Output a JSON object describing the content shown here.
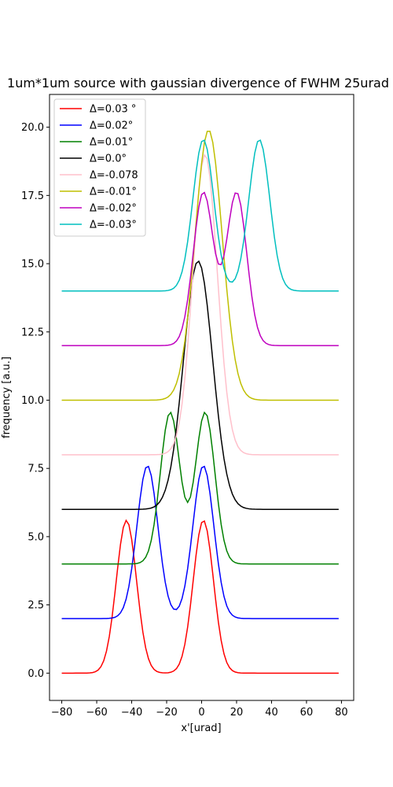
{
  "chart_data": {
    "type": "line",
    "title": "1um*1um source with gaussian divergence of FWHM 25urad",
    "xlabel": "x'[urad]",
    "ylabel": "frequency [a.u.]",
    "xlim": [
      -87,
      87
    ],
    "ylim": [
      -1.0,
      21.2
    ],
    "xticks": [
      -80,
      -60,
      -40,
      -20,
      0,
      20,
      40,
      60,
      80
    ],
    "yticks": [
      0.0,
      2.5,
      5.0,
      7.5,
      10.0,
      12.5,
      15.0,
      17.5,
      20.0
    ],
    "xtick_labels": [
      "−80",
      "−60",
      "−40",
      "−20",
      "0",
      "20",
      "40",
      "60",
      "80"
    ],
    "ytick_labels": [
      "0.0",
      "2.5",
      "5.0",
      "7.5",
      "10.0",
      "12.5",
      "15.0",
      "17.5",
      "20.0"
    ],
    "grid": false,
    "legend": "top-left",
    "series": [
      {
        "name": "Δ=0.03 °",
        "color": "#ff0000",
        "offset": 0,
        "peaks": [
          {
            "center": -43,
            "amp": 5.6,
            "sigma": 5.8
          },
          {
            "center": 1,
            "amp": 5.6,
            "sigma": 5.8
          }
        ]
      },
      {
        "name": "Δ=0.02°",
        "color": "#0000ff",
        "offset": 2,
        "peaks": [
          {
            "center": -31,
            "amp": 5.6,
            "sigma": 6.0
          },
          {
            "center": 1,
            "amp": 5.6,
            "sigma": 6.0
          }
        ]
      },
      {
        "name": "Δ=0.01°",
        "color": "#008000",
        "offset": 4,
        "peaks": [
          {
            "center": -18,
            "amp": 5.55,
            "sigma": 5.6
          },
          {
            "center": 2,
            "amp": 5.55,
            "sigma": 5.6
          }
        ]
      },
      {
        "name": "Δ=0.0°",
        "color": "#000000",
        "offset": 6,
        "peaks": [
          {
            "center": -2,
            "amp": 9.1,
            "sigma": 8.3
          }
        ]
      },
      {
        "name": "Δ=-0.078",
        "color": "#ffc0cb",
        "offset": 8,
        "peaks": [
          {
            "center": 2,
            "amp": 11.0,
            "sigma": 7.0
          }
        ]
      },
      {
        "name": "Δ=-0.01°",
        "color": "#bfbf00",
        "offset": 10,
        "peaks": [
          {
            "center": 4,
            "amp": 9.9,
            "sigma": 7.8
          }
        ]
      },
      {
        "name": "Δ=-0.02°",
        "color": "#bf00bf",
        "offset": 12,
        "peaks": [
          {
            "center": 1,
            "amp": 5.6,
            "sigma": 5.8
          },
          {
            "center": 20,
            "amp": 5.6,
            "sigma": 5.8
          }
        ]
      },
      {
        "name": "Δ=-0.03°",
        "color": "#00bfbf",
        "offset": 14,
        "peaks": [
          {
            "center": 1,
            "amp": 5.55,
            "sigma": 6.0
          },
          {
            "center": 33,
            "amp": 5.55,
            "sigma": 6.0
          }
        ]
      }
    ]
  }
}
